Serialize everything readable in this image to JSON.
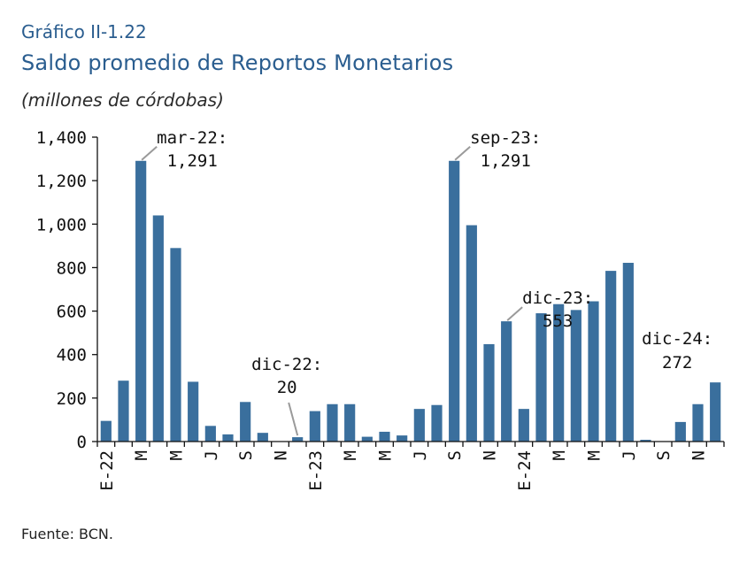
{
  "kicker": "Gráfico II-1.22",
  "title": "Saldo promedio de Reportos Monetarios",
  "units": "(millones de córdobas)",
  "source": "Fuente: BCN.",
  "colors": {
    "bar": "#3a6f9d",
    "heading": "#2a5d8f",
    "leader": "#9a9a9a",
    "axis": "#111111"
  },
  "chart_data": {
    "type": "bar",
    "ylim": [
      0,
      1400
    ],
    "yticks": [
      0,
      200,
      400,
      600,
      800,
      1000,
      1200,
      1400
    ],
    "ytick_labels": [
      "0",
      "200",
      "400",
      "600",
      "800",
      "1,000",
      "1,200",
      "1,400"
    ],
    "grid": false,
    "categories": [
      "E-22",
      "F-22",
      "M-22",
      "A-22",
      "M-22",
      "J-22",
      "J-22",
      "A-22",
      "S-22",
      "O-22",
      "N-22",
      "D-22",
      "E-23",
      "F-23",
      "M-23",
      "A-23",
      "M-23",
      "J-23",
      "J-23",
      "A-23",
      "S-23",
      "O-23",
      "N-23",
      "D-23",
      "E-24",
      "F-24",
      "M-24",
      "A-24",
      "M-24",
      "J-24",
      "J-24",
      "A-24",
      "S-24",
      "O-24",
      "N-24",
      "D-24"
    ],
    "xtick_labels": [
      "E-22",
      "",
      "M",
      "",
      "M",
      "",
      "J",
      "",
      "S",
      "",
      "N",
      "",
      "E-23",
      "",
      "M",
      "",
      "M",
      "",
      "J",
      "",
      "S",
      "",
      "N",
      "",
      "E-24",
      "",
      "M",
      "",
      "M",
      "",
      "J",
      "",
      "S",
      "",
      "N",
      ""
    ],
    "values": [
      95,
      280,
      1291,
      1040,
      890,
      275,
      72,
      33,
      182,
      40,
      2,
      20,
      140,
      172,
      172,
      22,
      45,
      28,
      150,
      168,
      1291,
      995,
      448,
      553,
      150,
      590,
      632,
      605,
      645,
      785,
      822,
      8,
      2,
      90,
      172,
      272
    ],
    "annotations": [
      {
        "index": 2,
        "label": "mar-22:",
        "value_text": "1,291"
      },
      {
        "index": 11,
        "label": "dic-22:",
        "value_text": "20"
      },
      {
        "index": 20,
        "label": "sep-23:",
        "value_text": "1,291"
      },
      {
        "index": 23,
        "label": "dic-23:",
        "value_text": "553"
      },
      {
        "index": 35,
        "label": "dic-24:",
        "value_text": "272"
      }
    ]
  }
}
